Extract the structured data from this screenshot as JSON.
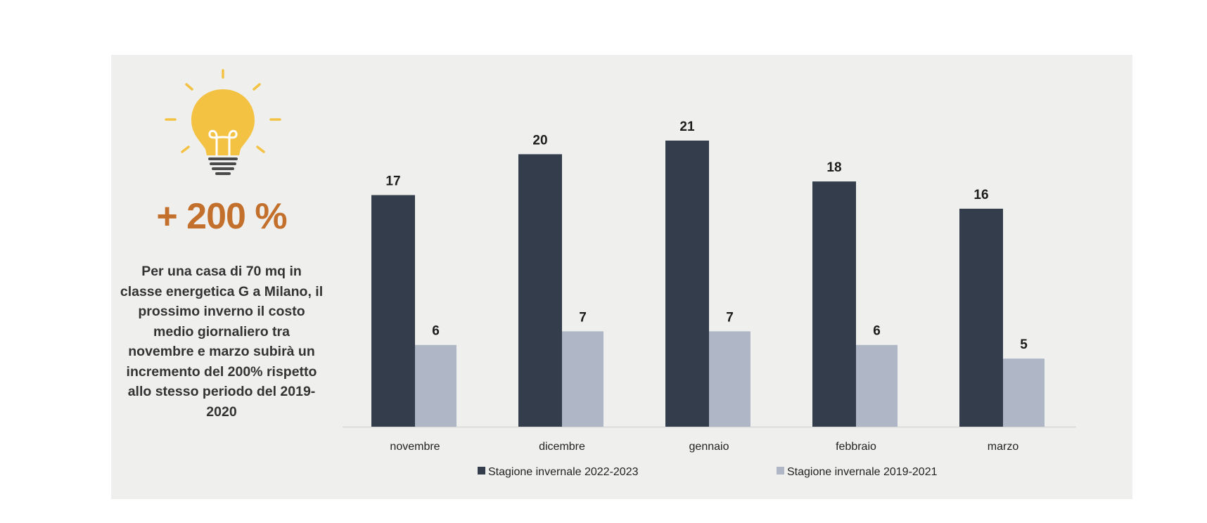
{
  "infographic": {
    "headline": "+ 200 %",
    "description": "Per una casa di 70 mq in classe energetica G a Milano, il prossimo inverno il costo medio giornaliero tra novembre e marzo subirà un incremento del 200% rispetto allo stesso periodo del 2019-2020",
    "icon": "lightbulb-icon",
    "accent_color": "#c4702d",
    "icon_color": "#f4c243"
  },
  "chart_data": {
    "type": "bar",
    "categories": [
      "novembre",
      "dicembre",
      "gennaio",
      "febbraio",
      "marzo"
    ],
    "series": [
      {
        "name": "Stagione invernale 2022-2023",
        "values": [
          17,
          20,
          21,
          18,
          16
        ],
        "color": "#333d4b"
      },
      {
        "name": "Stagione invernale 2019-2021",
        "values": [
          6,
          7,
          7,
          6,
          5
        ],
        "color": "#afb7c7"
      }
    ],
    "title": "",
    "xlabel": "",
    "ylabel": "",
    "ylim": [
      0,
      21
    ],
    "grid": false,
    "legend": "bottom",
    "data_labels": true
  }
}
